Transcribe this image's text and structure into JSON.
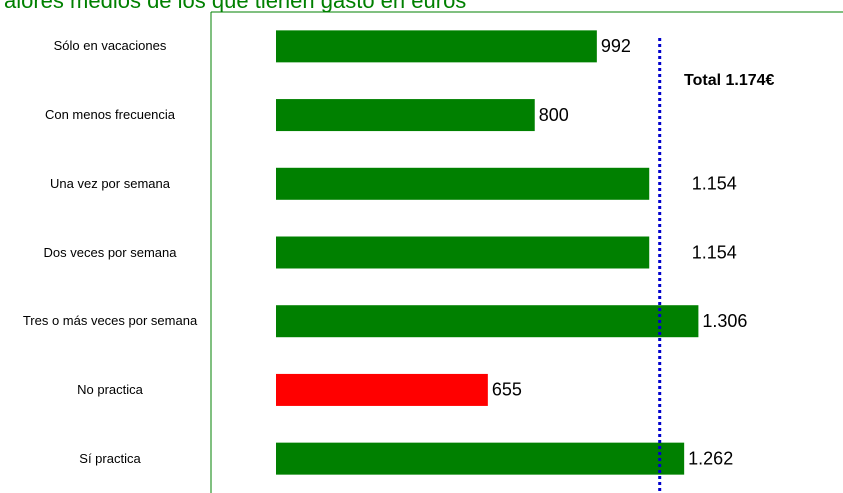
{
  "chart_data": {
    "type": "bar",
    "orientation": "horizontal",
    "title": "alores medios de los que tienen gasto en euros",
    "categories": [
      "Sólo en vacaciones",
      "Con menos frecuencia",
      "Una vez por semana",
      "Dos veces por semana",
      "Tres o más veces por semana",
      "No practica",
      "Sí practica"
    ],
    "values": [
      992,
      800,
      1154,
      1154,
      1306,
      655,
      1262
    ],
    "value_labels": [
      "992",
      "800",
      "1.154",
      "1.154",
      "1.306",
      "655",
      "1.262"
    ],
    "colors": [
      "#008000",
      "#008000",
      "#008000",
      "#008000",
      "#008000",
      "#ff0000",
      "#008000"
    ],
    "xlim": [
      0,
      1750
    ],
    "reference_line": {
      "value": 1174,
      "label": "Total 1.174€",
      "color": "#0000cc"
    }
  }
}
